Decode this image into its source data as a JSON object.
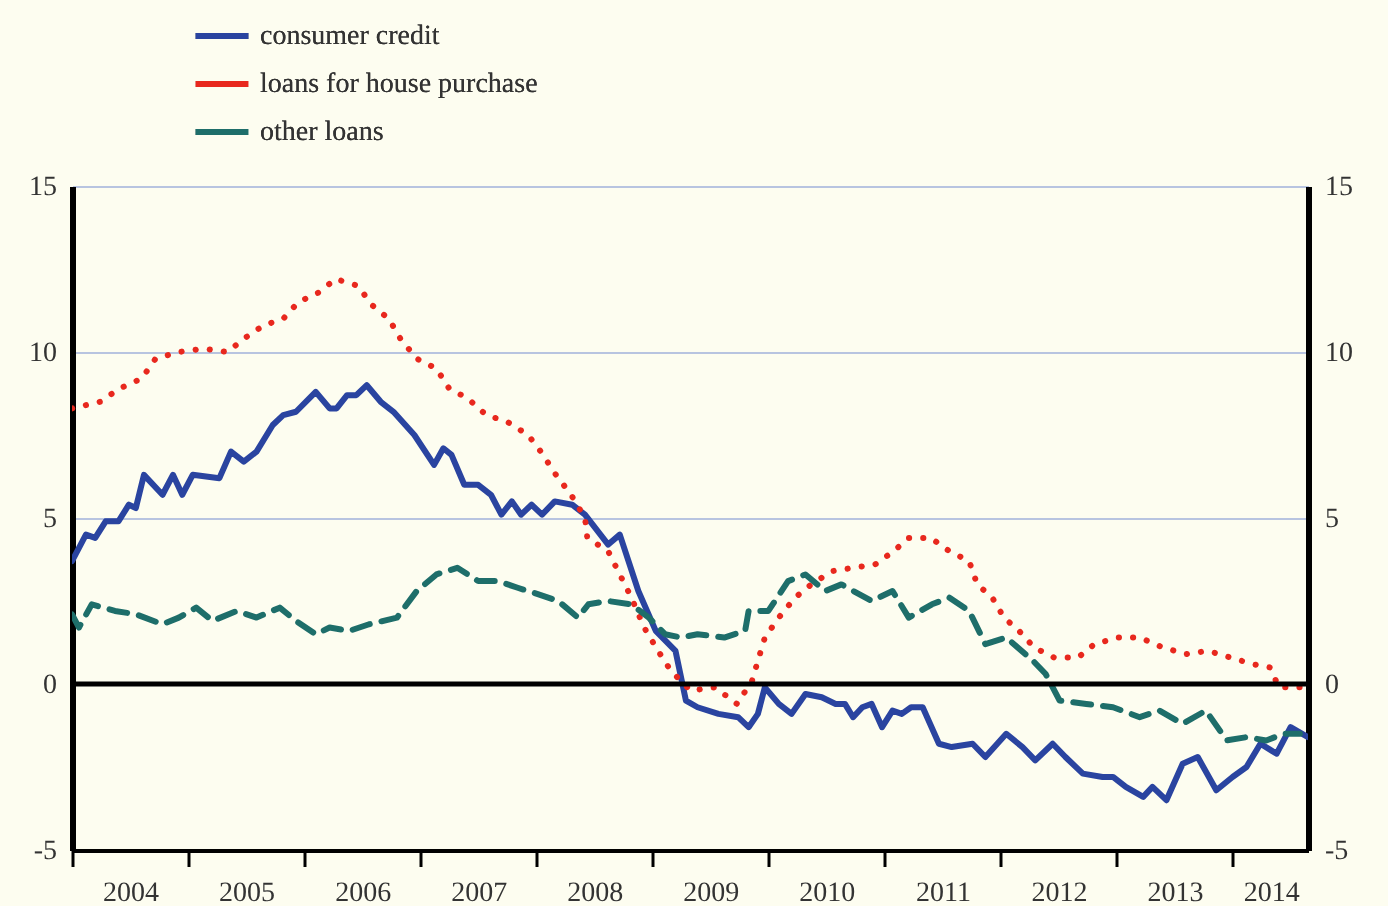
{
  "chart_data": {
    "type": "line",
    "xlim": [
      2004,
      2014.65
    ],
    "xticks": [
      {
        "value": 2004,
        "label": null
      },
      {
        "value": 2004.5,
        "label": "2004"
      },
      {
        "value": 2005,
        "label": null
      },
      {
        "value": 2005.5,
        "label": "2005"
      },
      {
        "value": 2006,
        "label": null
      },
      {
        "value": 2006.5,
        "label": "2006"
      },
      {
        "value": 2007,
        "label": null
      },
      {
        "value": 2007.5,
        "label": "2007"
      },
      {
        "value": 2008,
        "label": null
      },
      {
        "value": 2008.5,
        "label": "2008"
      },
      {
        "value": 2009,
        "label": null
      },
      {
        "value": 2009.5,
        "label": "2009"
      },
      {
        "value": 2010,
        "label": null
      },
      {
        "value": 2010.5,
        "label": "2010"
      },
      {
        "value": 2011,
        "label": null
      },
      {
        "value": 2011.5,
        "label": "2011"
      },
      {
        "value": 2012,
        "label": null
      },
      {
        "value": 2012.5,
        "label": "2012"
      },
      {
        "value": 2013,
        "label": null
      },
      {
        "value": 2013.5,
        "label": "2013"
      },
      {
        "value": 2014,
        "label": null
      },
      {
        "value": 2014.33,
        "label": "2014"
      }
    ],
    "ylim": [
      -5,
      15
    ],
    "yticks": [
      -5,
      0,
      5,
      10,
      15
    ],
    "y2lim": [
      -5,
      15
    ],
    "y2ticks": [
      -5,
      0,
      5,
      10,
      15
    ],
    "grid": "y",
    "legend": "top left",
    "ref_lines": [
      {
        "axis": "y",
        "value": 0,
        "color": "#000000"
      }
    ],
    "series": [
      {
        "name": "consumer credit",
        "color": "#2a44a0",
        "line_style": "solid",
        "x": [
          2004.0,
          2004.12,
          2004.2,
          2004.29,
          2004.4,
          2004.49,
          2004.55,
          2004.62,
          2004.78,
          2004.87,
          2004.95,
          2005.04,
          2005.27,
          2005.37,
          2005.48,
          2005.59,
          2005.73,
          2005.82,
          2005.93,
          2006.1,
          2006.22,
          2006.28,
          2006.37,
          2006.45,
          2006.54,
          2006.66,
          2006.77,
          2006.95,
          2007.12,
          2007.2,
          2007.27,
          2007.38,
          2007.5,
          2007.61,
          2007.7,
          2007.79,
          2007.87,
          2007.96,
          2008.05,
          2008.16,
          2008.31,
          2008.42,
          2008.62,
          2008.72,
          2008.88,
          2009.03,
          2009.2,
          2009.29,
          2009.39,
          2009.57,
          2009.74,
          2009.83,
          2009.91,
          2009.97,
          2010.09,
          2010.2,
          2010.32,
          2010.46,
          2010.58,
          2010.66,
          2010.73,
          2010.81,
          2010.89,
          2010.98,
          2011.07,
          2011.15,
          2011.23,
          2011.33,
          2011.47,
          2011.58,
          2011.76,
          2011.87,
          2012.05,
          2012.19,
          2012.3,
          2012.45,
          2012.56,
          2012.71,
          2012.88,
          2012.97,
          2013.08,
          2013.23,
          2013.31,
          2013.43,
          2013.57,
          2013.7,
          2013.86,
          2014.0,
          2014.12,
          2014.24,
          2014.38,
          2014.5,
          2014.65
        ],
        "values": [
          3.7,
          4.5,
          4.4,
          4.9,
          4.9,
          5.4,
          5.3,
          6.3,
          5.7,
          6.3,
          5.7,
          6.3,
          6.2,
          7.0,
          6.7,
          7.0,
          7.8,
          8.1,
          8.2,
          8.8,
          8.3,
          8.3,
          8.7,
          8.7,
          9.0,
          8.5,
          8.2,
          7.5,
          6.6,
          7.1,
          6.9,
          6.0,
          6.0,
          5.7,
          5.1,
          5.5,
          5.1,
          5.4,
          5.1,
          5.5,
          5.4,
          5.1,
          4.2,
          4.5,
          2.8,
          1.6,
          1.0,
          -0.5,
          -0.7,
          -0.9,
          -1.0,
          -1.3,
          -0.9,
          -0.1,
          -0.6,
          -0.9,
          -0.3,
          -0.4,
          -0.6,
          -0.6,
          -1.0,
          -0.7,
          -0.6,
          -1.3,
          -0.8,
          -0.9,
          -0.7,
          -0.7,
          -1.8,
          -1.9,
          -1.8,
          -2.2,
          -1.5,
          -1.9,
          -2.3,
          -1.8,
          -2.2,
          -2.7,
          -2.8,
          -2.8,
          -3.1,
          -3.4,
          -3.1,
          -3.5,
          -2.4,
          -2.2,
          -3.2,
          -2.8,
          -2.5,
          -1.8,
          -2.1,
          -1.3,
          -1.6
        ]
      },
      {
        "name": "loans for house purchase",
        "color": "#e8281e",
        "line_style": "dotted",
        "x": [
          2004.0,
          2004.24,
          2004.41,
          2004.6,
          2004.72,
          2004.92,
          2005.13,
          2005.34,
          2005.48,
          2005.65,
          2005.82,
          2005.95,
          2006.13,
          2006.27,
          2006.46,
          2006.59,
          2006.73,
          2006.83,
          2006.97,
          2007.14,
          2007.25,
          2007.41,
          2007.57,
          2007.75,
          2007.93,
          2008.04,
          2008.17,
          2008.3,
          2008.42,
          2008.44,
          2008.62,
          2008.82,
          2008.93,
          2009.05,
          2009.16,
          2009.33,
          2009.54,
          2009.73,
          2009.86,
          2009.91,
          2009.97,
          2010.09,
          2010.23,
          2010.37,
          2010.55,
          2010.73,
          2010.92,
          2011.08,
          2011.21,
          2011.4,
          2011.56,
          2011.73,
          2011.8,
          2011.93,
          2012.03,
          2012.16,
          2012.29,
          2012.46,
          2012.67,
          2012.81,
          2013.01,
          2013.2,
          2013.4,
          2013.6,
          2013.79,
          2013.98,
          2014.17,
          2014.32,
          2014.4,
          2014.58
        ],
        "values": [
          8.3,
          8.5,
          8.9,
          9.2,
          9.8,
          10.0,
          10.1,
          10.0,
          10.4,
          10.8,
          11.0,
          11.5,
          11.8,
          12.2,
          12.0,
          11.4,
          11.0,
          10.4,
          9.8,
          9.5,
          8.9,
          8.6,
          8.1,
          7.9,
          7.5,
          7.0,
          6.3,
          5.7,
          5.0,
          4.4,
          4.0,
          2.6,
          1.7,
          1.0,
          0.4,
          -0.2,
          -0.1,
          -0.6,
          0.1,
          0.7,
          1.4,
          2.0,
          2.6,
          3.0,
          3.4,
          3.5,
          3.6,
          4.0,
          4.4,
          4.4,
          4.0,
          3.7,
          3.0,
          2.6,
          2.0,
          1.6,
          1.1,
          0.8,
          0.8,
          1.2,
          1.4,
          1.4,
          1.1,
          0.9,
          1.0,
          0.8,
          0.6,
          0.5,
          -0.1,
          -0.1
        ]
      },
      {
        "name": "other loans",
        "color": "#1e6e6a",
        "line_style": "dashed",
        "x": [
          2004.0,
          2004.06,
          2004.17,
          2004.37,
          2004.55,
          2004.78,
          2004.92,
          2005.07,
          2005.21,
          2005.42,
          2005.59,
          2005.79,
          2005.93,
          2006.1,
          2006.22,
          2006.39,
          2006.56,
          2006.8,
          2006.97,
          2007.14,
          2007.32,
          2007.5,
          2007.67,
          2007.84,
          2008.02,
          2008.19,
          2008.36,
          2008.45,
          2008.62,
          2008.82,
          2008.97,
          2009.11,
          2009.25,
          2009.39,
          2009.62,
          2009.8,
          2009.83,
          2010.0,
          2010.17,
          2010.32,
          2010.49,
          2010.63,
          2010.89,
          2011.07,
          2011.21,
          2011.41,
          2011.56,
          2011.73,
          2011.87,
          2012.05,
          2012.28,
          2012.39,
          2012.51,
          2012.74,
          2012.97,
          2013.2,
          2013.37,
          2013.57,
          2013.77,
          2013.95,
          2014.12,
          2014.29,
          2014.44,
          2014.58
        ],
        "values": [
          2.1,
          1.7,
          2.4,
          2.2,
          2.1,
          1.8,
          2.0,
          2.3,
          1.9,
          2.2,
          2.0,
          2.3,
          1.9,
          1.5,
          1.7,
          1.6,
          1.8,
          2.0,
          2.8,
          3.3,
          3.5,
          3.1,
          3.1,
          2.9,
          2.7,
          2.5,
          2.0,
          2.4,
          2.5,
          2.4,
          2.0,
          1.5,
          1.4,
          1.5,
          1.4,
          1.6,
          2.2,
          2.2,
          3.1,
          3.3,
          2.8,
          3.0,
          2.5,
          2.8,
          2.0,
          2.4,
          2.6,
          2.2,
          1.2,
          1.4,
          0.7,
          0.3,
          -0.5,
          -0.6,
          -0.7,
          -1.0,
          -0.8,
          -1.2,
          -0.8,
          -1.7,
          -1.6,
          -1.7,
          -1.5,
          -1.5
        ]
      }
    ]
  }
}
